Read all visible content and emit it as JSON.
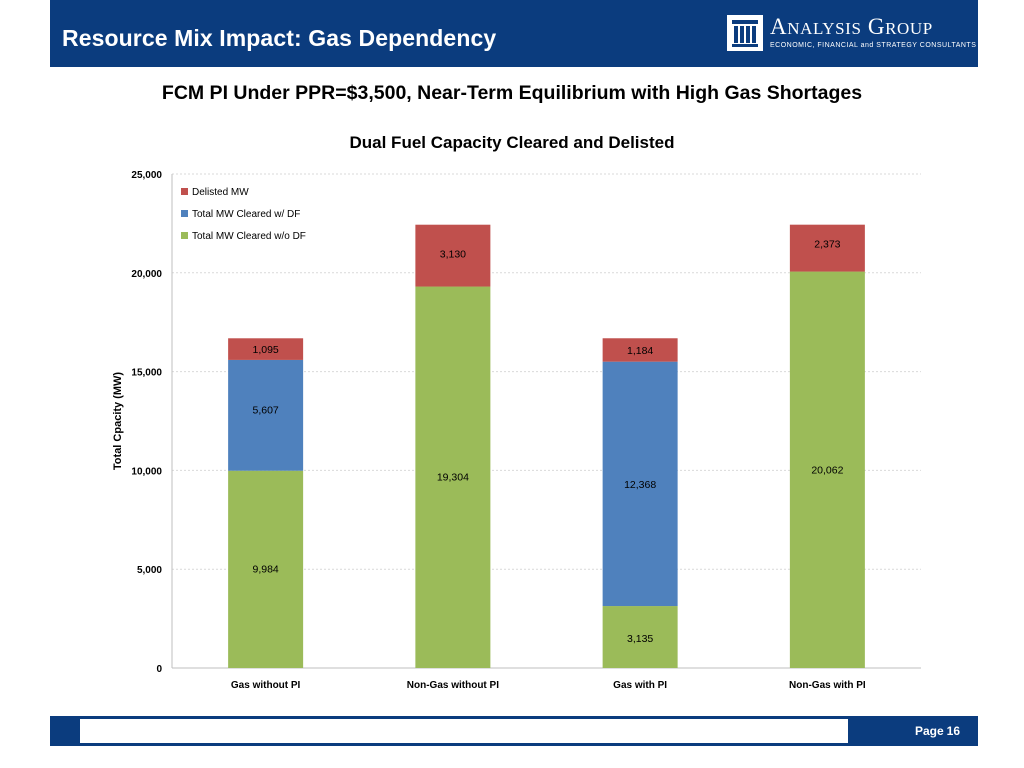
{
  "header": {
    "title": "Resource Mix Impact: Gas Dependency"
  },
  "logo": {
    "name_first_initial": "A",
    "name_first_rest": "NALYSIS",
    "name_second_initial": "G",
    "name_second_rest": "ROUP",
    "tagline": "ECONOMIC, FINANCIAL and STRATEGY CONSULTANTS"
  },
  "subtitle": "FCM PI Under PPR=$3,500, Near-Term Equilibrium with High Gas Shortages",
  "footer": {
    "page_prefix": "Page",
    "page_number": "16"
  },
  "colors": {
    "header_bg": "#0b3c7e",
    "delisted": "#c0504d",
    "cleared_with_df": "#4f81bd",
    "cleared_without_df": "#9bbb59"
  },
  "chart_data": {
    "type": "bar",
    "stacked": true,
    "title": "Dual Fuel Capacity Cleared and Delisted",
    "xlabel": "",
    "ylabel": "Total Cpacity (MW)",
    "ylim": [
      0,
      25000
    ],
    "yticks": [
      0,
      5000,
      10000,
      15000,
      20000,
      25000
    ],
    "ytick_labels": [
      "0",
      "5,000",
      "10,000",
      "15,000",
      "20,000",
      "25,000"
    ],
    "grid": true,
    "legend_position": "top-left",
    "categories": [
      "Gas without PI",
      "Non-Gas without PI",
      "Gas with PI",
      "Non-Gas with PI"
    ],
    "series": [
      {
        "name": "Total MW Cleared w/o DF",
        "color": "#9bbb59",
        "values": [
          9984,
          19304,
          3135,
          20062
        ],
        "labels": [
          "9,984",
          "19,304",
          "3,135",
          "20,062"
        ]
      },
      {
        "name": "Total MW Cleared w/ DF",
        "color": "#4f81bd",
        "values": [
          5607,
          0,
          12368,
          0
        ],
        "labels": [
          "5,607",
          "",
          "12,368",
          ""
        ]
      },
      {
        "name": "Delisted MW",
        "color": "#c0504d",
        "values": [
          1095,
          3130,
          1184,
          2373
        ],
        "labels": [
          "1,095",
          "3,130",
          "1,184",
          "2,373"
        ]
      }
    ],
    "legend_order": [
      "Delisted MW",
      "Total MW Cleared w/ DF",
      "Total MW Cleared w/o DF"
    ]
  }
}
